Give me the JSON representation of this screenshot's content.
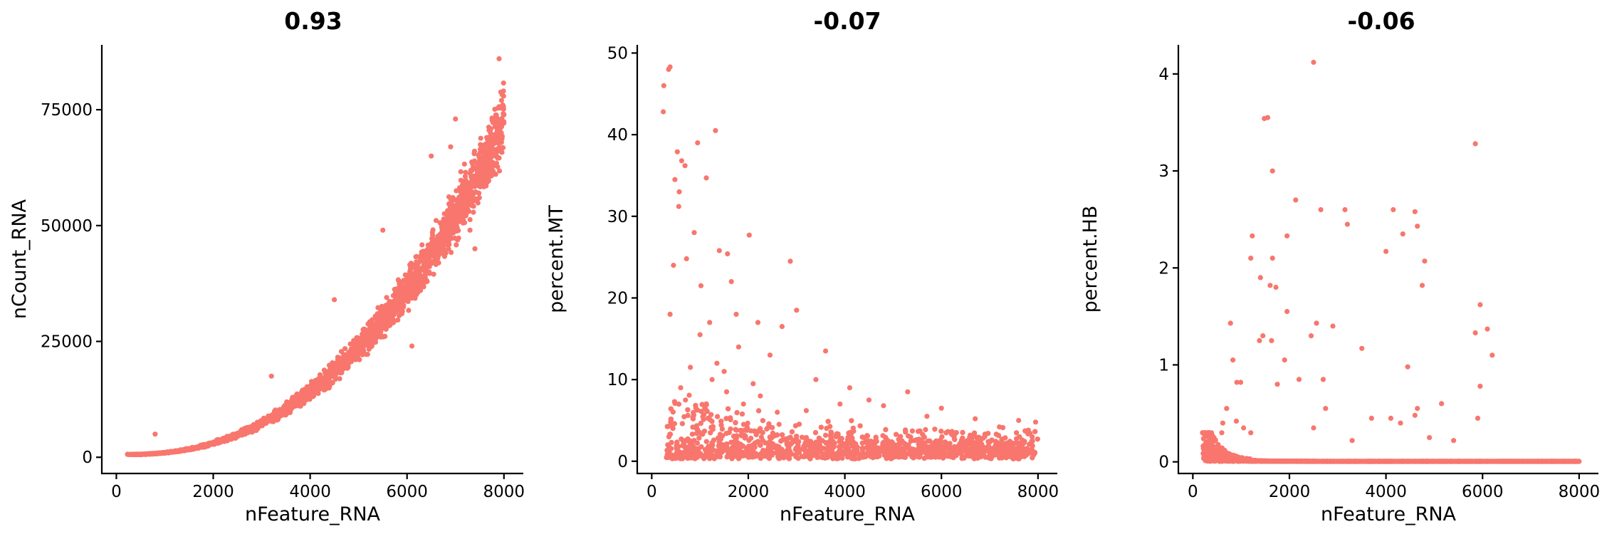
{
  "chart_data": [
    {
      "type": "scatter",
      "title": "0.93",
      "xlabel": "nFeature_RNA",
      "ylabel": "nCount_RNA",
      "xlim": [
        -300,
        8400
      ],
      "ylim": [
        -3500,
        89000
      ],
      "xticks": [
        0,
        2000,
        4000,
        6000,
        8000
      ],
      "yticks": [
        0,
        25000,
        50000,
        75000
      ],
      "point_color": "#F8766D",
      "trend": {
        "kind": "power",
        "a": 600,
        "x0": 200,
        "x1": 8000,
        "p": 2.3,
        "b": 71000,
        "spread": 0.09
      },
      "outliers": [
        [
          7900,
          86000
        ],
        [
          7950,
          77000
        ],
        [
          7000,
          73000
        ],
        [
          6500,
          65000
        ],
        [
          7850,
          73000
        ],
        [
          7700,
          69000
        ],
        [
          5500,
          49000
        ],
        [
          6900,
          67000
        ],
        [
          4500,
          34000
        ],
        [
          3200,
          17500
        ],
        [
          800,
          5000
        ],
        [
          6100,
          24000
        ],
        [
          5700,
          30000
        ],
        [
          7400,
          45000
        ],
        [
          7300,
          49000
        ]
      ]
    },
    {
      "type": "scatter",
      "title": "-0.07",
      "xlabel": "nFeature_RNA",
      "ylabel": "percent.MT",
      "xlim": [
        -300,
        8400
      ],
      "ylim": [
        -1.5,
        51
      ],
      "xticks": [
        0,
        2000,
        4000,
        6000,
        8000
      ],
      "yticks": [
        0,
        10,
        20,
        30,
        40,
        50
      ],
      "point_color": "#F8766D",
      "trend": {
        "kind": "band",
        "x0": 300,
        "x1": 8000,
        "base": 0.3,
        "height": 2.2,
        "tail": 4,
        "tail_decay": 1500
      },
      "outliers": [
        [
          380,
          48.3
        ],
        [
          350,
          48
        ],
        [
          250,
          46
        ],
        [
          240,
          42.8
        ],
        [
          1320,
          40.5
        ],
        [
          950,
          39
        ],
        [
          530,
          37.9
        ],
        [
          620,
          36.8
        ],
        [
          690,
          36.2
        ],
        [
          480,
          34.5
        ],
        [
          570,
          33
        ],
        [
          1130,
          34.7
        ],
        [
          560,
          31.2
        ],
        [
          880,
          28
        ],
        [
          450,
          24
        ],
        [
          2020,
          27.7
        ],
        [
          1400,
          25.8
        ],
        [
          1570,
          25.4
        ],
        [
          2870,
          24.5
        ],
        [
          380,
          18
        ],
        [
          720,
          24.8
        ],
        [
          1020,
          21.5
        ],
        [
          1650,
          22
        ],
        [
          1200,
          17
        ],
        [
          1750,
          18
        ],
        [
          2200,
          17
        ],
        [
          3000,
          18.5
        ],
        [
          2700,
          16.5
        ],
        [
          1800,
          14
        ],
        [
          2450,
          13
        ],
        [
          3600,
          13.5
        ],
        [
          1000,
          15.5
        ],
        [
          1350,
          12
        ],
        [
          1500,
          11
        ],
        [
          800,
          11.5
        ],
        [
          1250,
          10
        ],
        [
          3400,
          10
        ],
        [
          4100,
          9
        ],
        [
          5300,
          8.5
        ],
        [
          4500,
          7.5
        ],
        [
          2250,
          8
        ],
        [
          1900,
          7
        ],
        [
          1100,
          6.5
        ],
        [
          3900,
          7
        ],
        [
          6000,
          6.5
        ],
        [
          4800,
          6.8
        ],
        [
          2600,
          6
        ],
        [
          3200,
          6.2
        ],
        [
          5700,
          5.5
        ],
        [
          7600,
          5
        ],
        [
          6700,
          5.2
        ],
        [
          7950,
          4.8
        ],
        [
          7200,
          4.2
        ],
        [
          7800,
          3.8
        ],
        [
          600,
          9
        ],
        [
          700,
          7.5
        ],
        [
          1550,
          8.5
        ],
        [
          2100,
          9.5
        ]
      ]
    },
    {
      "type": "scatter",
      "title": "-0.06",
      "xlabel": "nFeature_RNA",
      "ylabel": "percent.HB",
      "xlim": [
        -300,
        8400
      ],
      "ylim": [
        -0.12,
        4.3
      ],
      "xticks": [
        0,
        2000,
        4000,
        6000,
        8000
      ],
      "yticks": [
        0,
        1,
        2,
        3,
        4
      ],
      "point_color": "#F8766D",
      "trend": {
        "kind": "decay",
        "x0": 200,
        "x1": 8000,
        "base": 0.005,
        "amp": 0.22,
        "decay": 350
      },
      "outliers": [
        [
          2500,
          4.12
        ],
        [
          1550,
          3.55
        ],
        [
          1480,
          3.54
        ],
        [
          5850,
          3.28
        ],
        [
          1650,
          3.0
        ],
        [
          2130,
          2.7
        ],
        [
          2650,
          2.6
        ],
        [
          3150,
          2.6
        ],
        [
          4150,
          2.6
        ],
        [
          4600,
          2.58
        ],
        [
          3200,
          2.45
        ],
        [
          4650,
          2.43
        ],
        [
          4350,
          2.35
        ],
        [
          1230,
          2.33
        ],
        [
          1950,
          2.33
        ],
        [
          4000,
          2.17
        ],
        [
          1650,
          2.1
        ],
        [
          1200,
          2.1
        ],
        [
          4800,
          2.07
        ],
        [
          1720,
          1.8
        ],
        [
          1600,
          1.82
        ],
        [
          1400,
          1.9
        ],
        [
          4750,
          1.82
        ],
        [
          5950,
          1.62
        ],
        [
          1950,
          1.55
        ],
        [
          1450,
          1.3
        ],
        [
          5850,
          1.33
        ],
        [
          6100,
          1.37
        ],
        [
          2560,
          1.43
        ],
        [
          2900,
          1.4
        ],
        [
          780,
          1.43
        ],
        [
          1630,
          1.25
        ],
        [
          1380,
          1.25
        ],
        [
          2450,
          1.3
        ],
        [
          6200,
          1.1
        ],
        [
          3500,
          1.17
        ],
        [
          830,
          1.05
        ],
        [
          1900,
          1.05
        ],
        [
          2200,
          0.85
        ],
        [
          2700,
          0.85
        ],
        [
          990,
          0.82
        ],
        [
          910,
          0.82
        ],
        [
          4450,
          0.98
        ],
        [
          5950,
          0.78
        ],
        [
          1750,
          0.8
        ],
        [
          700,
          0.55
        ],
        [
          5150,
          0.6
        ],
        [
          2750,
          0.55
        ],
        [
          4650,
          0.55
        ],
        [
          4600,
          0.48
        ],
        [
          3700,
          0.45
        ],
        [
          4100,
          0.45
        ],
        [
          4300,
          0.4
        ],
        [
          5900,
          0.45
        ],
        [
          2500,
          0.35
        ],
        [
          4900,
          0.25
        ],
        [
          1050,
          0.35
        ],
        [
          1200,
          0.3
        ],
        [
          900,
          0.42
        ],
        [
          620,
          0.4
        ],
        [
          5400,
          0.22
        ],
        [
          3300,
          0.22
        ],
        [
          600,
          0.3
        ]
      ]
    }
  ]
}
